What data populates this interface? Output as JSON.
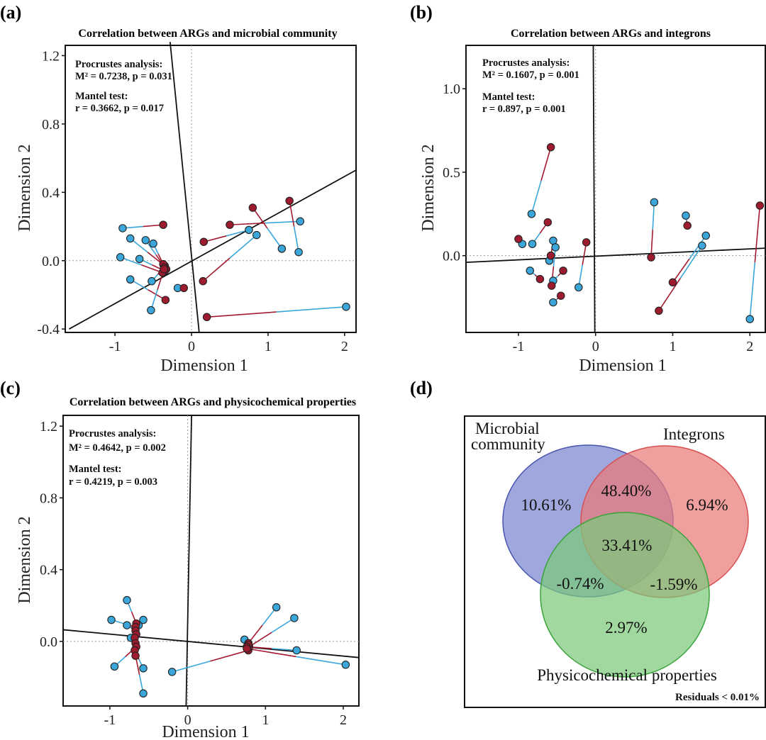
{
  "colors": {
    "blue": "#3aa6d9",
    "red": "#9e1a2e",
    "blue_line": "#3aa6d9",
    "red_line": "#a3192f",
    "venn_blue": "#7a85cf",
    "venn_red": "#ea7a7a",
    "venn_green": "#7cc97c"
  },
  "chart_data": [
    {
      "id": "a",
      "type": "scatter",
      "panel_label": "(a)",
      "title": "Correlation between ARGs and microbial community",
      "xlabel": "Dimension 1",
      "ylabel": "Dimension 2",
      "xlim": [
        -1.65,
        2.15
      ],
      "ylim": [
        -0.42,
        1.26
      ],
      "xticks": [
        -1,
        0,
        1,
        2
      ],
      "yticks": [
        -0.4,
        0.0,
        0.4,
        0.8,
        1.2
      ],
      "xtick_labels": [
        "-1",
        "0",
        "1",
        "2"
      ],
      "ytick_labels": [
        "-0.4",
        "0.0",
        "0.4",
        "0.8",
        "1.2"
      ],
      "stats": {
        "p_title": "Procrustes analysis:",
        "p_line": "M² = 0.7238, p = 0.031",
        "m_title": "Mantel test:",
        "m_line": "r = 0.3662, p = 0.017"
      },
      "axis_lines": [
        [
          [
            -1.6,
            -0.4
          ],
          [
            2.15,
            0.53
          ]
        ],
        [
          [
            -0.28,
            1.28
          ],
          [
            0.1,
            -0.42
          ]
        ]
      ],
      "pairs": [
        {
          "b": [
            -0.9,
            0.19
          ],
          "r": [
            -0.37,
            0.21
          ]
        },
        {
          "b": [
            -0.8,
            0.13
          ],
          "r": [
            -0.35,
            -0.03
          ]
        },
        {
          "b": [
            -0.6,
            0.12
          ],
          "r": [
            -0.33,
            -0.05
          ]
        },
        {
          "b": [
            -0.5,
            0.1
          ],
          "r": [
            -0.37,
            -0.02
          ]
        },
        {
          "b": [
            -0.68,
            0.01
          ],
          "r": [
            -0.35,
            -0.06
          ]
        },
        {
          "b": [
            -0.93,
            0.02
          ],
          "r": [
            -0.38,
            -0.07
          ]
        },
        {
          "b": [
            -0.8,
            -0.11
          ],
          "r": [
            -0.34,
            -0.23
          ]
        },
        {
          "b": [
            -0.52,
            -0.12
          ],
          "r": [
            -0.36,
            -0.04
          ]
        },
        {
          "b": [
            -0.53,
            -0.29
          ],
          "r": [
            -0.36,
            -0.05
          ]
        },
        {
          "b": [
            -0.18,
            -0.16
          ],
          "r": [
            -0.1,
            -0.16
          ]
        },
        {
          "b": [
            0.75,
            0.18
          ],
          "r": [
            0.16,
            0.11
          ]
        },
        {
          "b": [
            1.42,
            0.23
          ],
          "r": [
            0.5,
            0.21
          ]
        },
        {
          "b": [
            1.18,
            0.07
          ],
          "r": [
            0.8,
            0.31
          ]
        },
        {
          "b": [
            1.4,
            0.05
          ],
          "r": [
            1.28,
            0.35
          ]
        },
        {
          "b": [
            0.85,
            0.15
          ],
          "r": [
            0.15,
            -0.12
          ]
        },
        {
          "b": [
            2.02,
            -0.27
          ],
          "r": [
            0.2,
            -0.33
          ]
        }
      ]
    },
    {
      "id": "b",
      "type": "scatter",
      "panel_label": "(b)",
      "title": "Correlation between ARGs and integrons",
      "xlabel": "Dimension 1",
      "ylabel": "Dimension 2",
      "xlim": [
        -1.68,
        2.2
      ],
      "ylim": [
        -0.46,
        1.26
      ],
      "xticks": [
        -1,
        0,
        1,
        2
      ],
      "yticks": [
        0.0,
        0.5,
        1.0
      ],
      "xtick_labels": [
        "-1",
        "0",
        "1",
        "2"
      ],
      "ytick_labels": [
        "0.0",
        "0.5",
        "1.0"
      ],
      "stats": {
        "p_title": "Procrustes analysis:",
        "p_line": "M² = 0.1607, p = 0.001",
        "m_title": "Mantel test:",
        "m_line": "r = 0.897, p = 0.001"
      },
      "axis_lines": [
        [
          [
            -1.68,
            -0.04
          ],
          [
            2.2,
            0.045
          ]
        ],
        [
          [
            -0.03,
            1.26
          ],
          [
            -0.01,
            -0.46
          ]
        ]
      ],
      "pairs": [
        {
          "b": [
            -0.83,
            0.25
          ],
          "r": [
            -0.58,
            0.65
          ]
        },
        {
          "b": [
            -0.95,
            0.07
          ],
          "r": [
            -1.0,
            0.1
          ]
        },
        {
          "b": [
            -0.82,
            0.07
          ],
          "r": [
            -0.62,
            0.2
          ]
        },
        {
          "b": [
            -0.55,
            0.09
          ],
          "r": [
            -0.58,
            0.0
          ]
        },
        {
          "b": [
            -0.52,
            0.05
          ],
          "r": [
            -0.57,
            -0.18
          ]
        },
        {
          "b": [
            -0.6,
            -0.03
          ],
          "r": [
            -0.58,
            0.0
          ]
        },
        {
          "b": [
            -0.85,
            -0.09
          ],
          "r": [
            -0.72,
            -0.14
          ]
        },
        {
          "b": [
            -0.55,
            -0.15
          ],
          "r": [
            -0.42,
            -0.09
          ]
        },
        {
          "b": [
            -0.55,
            -0.28
          ],
          "r": [
            -0.45,
            -0.24
          ]
        },
        {
          "b": [
            -0.22,
            -0.19
          ],
          "r": [
            -0.12,
            0.08
          ]
        },
        {
          "b": [
            0.76,
            0.32
          ],
          "r": [
            0.72,
            -0.01
          ]
        },
        {
          "b": [
            1.17,
            0.24
          ],
          "r": [
            1.19,
            0.18
          ]
        },
        {
          "b": [
            1.43,
            0.12
          ],
          "r": [
            1.0,
            -0.16
          ]
        },
        {
          "b": [
            1.38,
            0.06
          ],
          "r": [
            0.82,
            -0.33
          ]
        },
        {
          "b": [
            2.0,
            -0.38
          ],
          "r": [
            2.13,
            0.3
          ]
        }
      ]
    },
    {
      "id": "c",
      "type": "scatter",
      "panel_label": "(c)",
      "title": "Correlation between ARGs and physicochemical properties",
      "xlabel": "Dimension 1",
      "ylabel": "Dimension 2",
      "xlim": [
        -1.6,
        2.2
      ],
      "ylim": [
        -0.36,
        1.26
      ],
      "xticks": [
        -1,
        0,
        1,
        2
      ],
      "yticks": [
        0.0,
        0.4,
        0.8,
        1.2
      ],
      "xtick_labels": [
        "-1",
        "0",
        "1",
        "2"
      ],
      "ytick_labels": [
        "0.0",
        "0.4",
        "0.8",
        "1.2"
      ],
      "stats": {
        "p_title": "Procrustes analysis:",
        "p_line": "M² = 0.4642, p = 0.002",
        "m_title": "Mantel test:",
        "m_line": "r = 0.4219, p = 0.003"
      },
      "axis_lines": [
        [
          [
            -1.6,
            0.065
          ],
          [
            2.2,
            -0.09
          ]
        ],
        [
          [
            0.05,
            1.26
          ],
          [
            -0.02,
            -0.36
          ]
        ]
      ],
      "pairs": [
        {
          "b": [
            -0.78,
            0.23
          ],
          "r": [
            -0.66,
            0.1
          ]
        },
        {
          "b": [
            -0.98,
            0.12
          ],
          "r": [
            -0.67,
            0.08
          ]
        },
        {
          "b": [
            -0.78,
            0.09
          ],
          "r": [
            -0.67,
            0.06
          ]
        },
        {
          "b": [
            -0.57,
            0.12
          ],
          "r": [
            -0.66,
            0.04
          ]
        },
        {
          "b": [
            -0.63,
            0.09
          ],
          "r": [
            -0.68,
            0.02
          ]
        },
        {
          "b": [
            -0.73,
            0.02
          ],
          "r": [
            -0.67,
            -0.01
          ]
        },
        {
          "b": [
            -0.94,
            -0.14
          ],
          "r": [
            -0.66,
            -0.03
          ]
        },
        {
          "b": [
            -0.57,
            -0.15
          ],
          "r": [
            -0.68,
            -0.05
          ]
        },
        {
          "b": [
            -0.57,
            -0.29
          ],
          "r": [
            -0.67,
            -0.08
          ]
        },
        {
          "b": [
            -0.2,
            -0.17
          ],
          "r": [
            0.78,
            -0.05
          ]
        },
        {
          "b": [
            1.14,
            0.19
          ],
          "r": [
            0.78,
            -0.01
          ]
        },
        {
          "b": [
            1.37,
            0.13
          ],
          "r": [
            0.79,
            -0.03
          ]
        },
        {
          "b": [
            0.73,
            0.01
          ],
          "r": [
            0.78,
            -0.02
          ]
        },
        {
          "b": [
            1.4,
            -0.05
          ],
          "r": [
            0.76,
            -0.03
          ]
        },
        {
          "b": [
            2.03,
            -0.13
          ],
          "r": [
            0.76,
            -0.04
          ]
        }
      ]
    },
    {
      "id": "d",
      "type": "venn",
      "panel_label": "(d)",
      "sets": [
        "Microbial community",
        "Integrons",
        "Physicochemical properties"
      ],
      "set_label_lines": {
        "microbial_1": "Microbial",
        "microbial_2": "community",
        "integrons": "Integrons",
        "physico": "Physicochemical properties"
      },
      "regions": {
        "microbial_only": "10.61%",
        "microbial_integrons": "48.40%",
        "integrons_only": "6.94%",
        "all_three": "33.41%",
        "microbial_physico": "-0.74%",
        "integrons_physico": "-1.59%",
        "physico_only": "2.97%"
      },
      "residuals": "Residuals < 0.01%"
    }
  ]
}
